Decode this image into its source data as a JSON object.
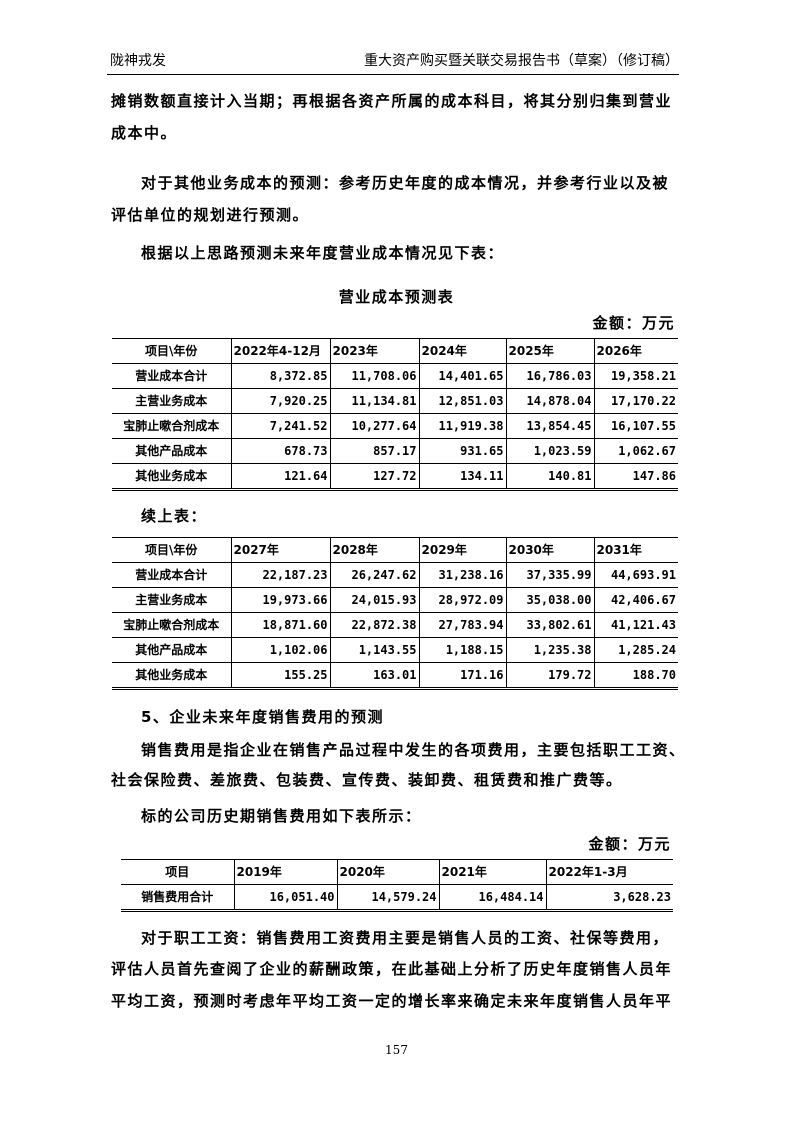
{
  "header": {
    "left": "陇神戎发",
    "right": "重大资产购买暨关联交易报告书（草案）（修订稿）"
  },
  "paragraphs": {
    "p1a": "摊销数额直接计入当期；再根据各资产所属的成本科目，将其分别归集到营业",
    "p1b": "成本中。",
    "p2a": "对于其他业务成本的预测：参考历史年度的成本情况，并参考行业以及被",
    "p2b": "评估单位的规划进行预测。",
    "p3": "根据以上思路预测未来年度营业成本情况见下表：",
    "table_title": "营业成本预测表",
    "unit1": "金额：万元",
    "cont": "续上表：",
    "section5": "5、企业未来年度销售费用的预测",
    "p4a": "销售费用是指企业在销售产品过程中发生的各项费用，主要包括职工工资、",
    "p4b": "社会保险费、差旅费、包装费、宣传费、装卸费、租赁费和推广费等。",
    "p5": "标的公司历史期销售费用如下表所示：",
    "unit2": "金额：万元",
    "p6a": "对于职工工资：销售费用工资费用主要是销售人员的工资、社保等费用，",
    "p6b": "评估人员首先查阅了企业的薪酬政策，在此基础上分析了历史年度销售人员年",
    "p6c": "平均工资，预测时考虑年平均工资一定的增长率来确定未来年度销售人员年平"
  },
  "table1": {
    "header": [
      "项目\\年份",
      "2022年4-12月",
      "2023年",
      "2024年",
      "2025年",
      "2026年"
    ],
    "rows": [
      [
        "营业成本合计",
        "8,372.85",
        "11,708.06",
        "14,401.65",
        "16,786.03",
        "19,358.21"
      ],
      [
        "主营业务成本",
        "7,920.25",
        "11,134.81",
        "12,851.03",
        "14,878.04",
        "17,170.22"
      ],
      [
        "宝肺止嗽合剂成本",
        "7,241.52",
        "10,277.64",
        "11,919.38",
        "13,854.45",
        "16,107.55"
      ],
      [
        "其他产品成本",
        "678.73",
        "857.17",
        "931.65",
        "1,023.59",
        "1,062.67"
      ],
      [
        "其他业务成本",
        "121.64",
        "127.72",
        "134.11",
        "140.81",
        "147.86"
      ]
    ]
  },
  "table2": {
    "header": [
      "项目\\年份",
      "2027年",
      "2028年",
      "2029年",
      "2030年",
      "2031年"
    ],
    "rows": [
      [
        "营业成本合计",
        "22,187.23",
        "26,247.62",
        "31,238.16",
        "37,335.99",
        "44,693.91"
      ],
      [
        "主营业务成本",
        "19,973.66",
        "24,015.93",
        "28,972.09",
        "35,038.00",
        "42,406.67"
      ],
      [
        "宝肺止嗽合剂成本",
        "18,871.60",
        "22,872.38",
        "27,783.94",
        "33,802.61",
        "41,121.43"
      ],
      [
        "其他产品成本",
        "1,102.06",
        "1,143.55",
        "1,188.15",
        "1,235.38",
        "1,285.24"
      ],
      [
        "其他业务成本",
        "155.25",
        "163.01",
        "171.16",
        "179.72",
        "188.70"
      ]
    ]
  },
  "table3": {
    "header": [
      "项目",
      "2019年",
      "2020年",
      "2021年",
      "2022年1-3月"
    ],
    "rows": [
      [
        "销售费用合计",
        "16,051.40",
        "14,579.24",
        "16,484.14",
        "3,628.23"
      ]
    ]
  },
  "page_number": "157"
}
